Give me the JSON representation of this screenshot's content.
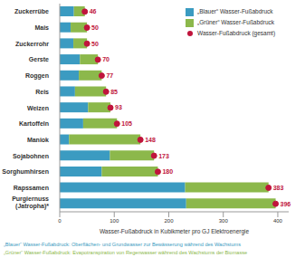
{
  "chart_data": {
    "type": "bar",
    "orientation": "horizontal",
    "stacked": true,
    "grid": false,
    "legend": "upper right",
    "categories": [
      "Zuckerrübe",
      "Mais",
      "Zuckerrohr",
      "Gerste",
      "Roggen",
      "Reis",
      "Weizen",
      "Kartoffeln",
      "Maniok",
      "Sojabohnen",
      "Sorghumhirsen",
      "Rapssamen",
      "Purgiernuss (Jatropha)*"
    ],
    "series": [
      {
        "name": "„Blauer“ Wasser-Fußabdruck",
        "color": "#3b9bc1",
        "values": [
          26,
          20,
          25,
          37,
          35,
          28,
          52,
          43,
          17,
          92,
          77,
          230,
          232
        ]
      },
      {
        "name": "„Grüner“ Wasser-Fußabdruck",
        "color": "#8cb84b",
        "values": [
          20,
          30,
          25,
          33,
          42,
          57,
          41,
          62,
          131,
          81,
          103,
          153,
          164
        ]
      },
      {
        "name": "Wasser-Fußabdruck (gesamt)",
        "type": "scatter",
        "marker": "circle",
        "color": "#c0143c",
        "data_labels": true,
        "values": [
          46,
          50,
          50,
          70,
          77,
          85,
          93,
          105,
          148,
          173,
          180,
          383,
          396
        ]
      }
    ],
    "xlim": [
      0,
      420
    ],
    "xticks": [
      0,
      100,
      200,
      300,
      400
    ],
    "x_label": "Wasser-Fußabdruck in Kubikmeter pro GJ Elektroenergie",
    "notes": [
      {
        "text": "„Blauer“ Wasser-Fußabdruck: Oberflächen- und Grundwasser zur Bewässerung während des Wachstums",
        "color": "#3b9bc1"
      },
      {
        "text": "„Grüner“ Wasser-Fußabdruck: Evapotranspiration von Regenwasser während des Wachstums der Biomasse",
        "color": "#8cb84b"
      }
    ]
  }
}
